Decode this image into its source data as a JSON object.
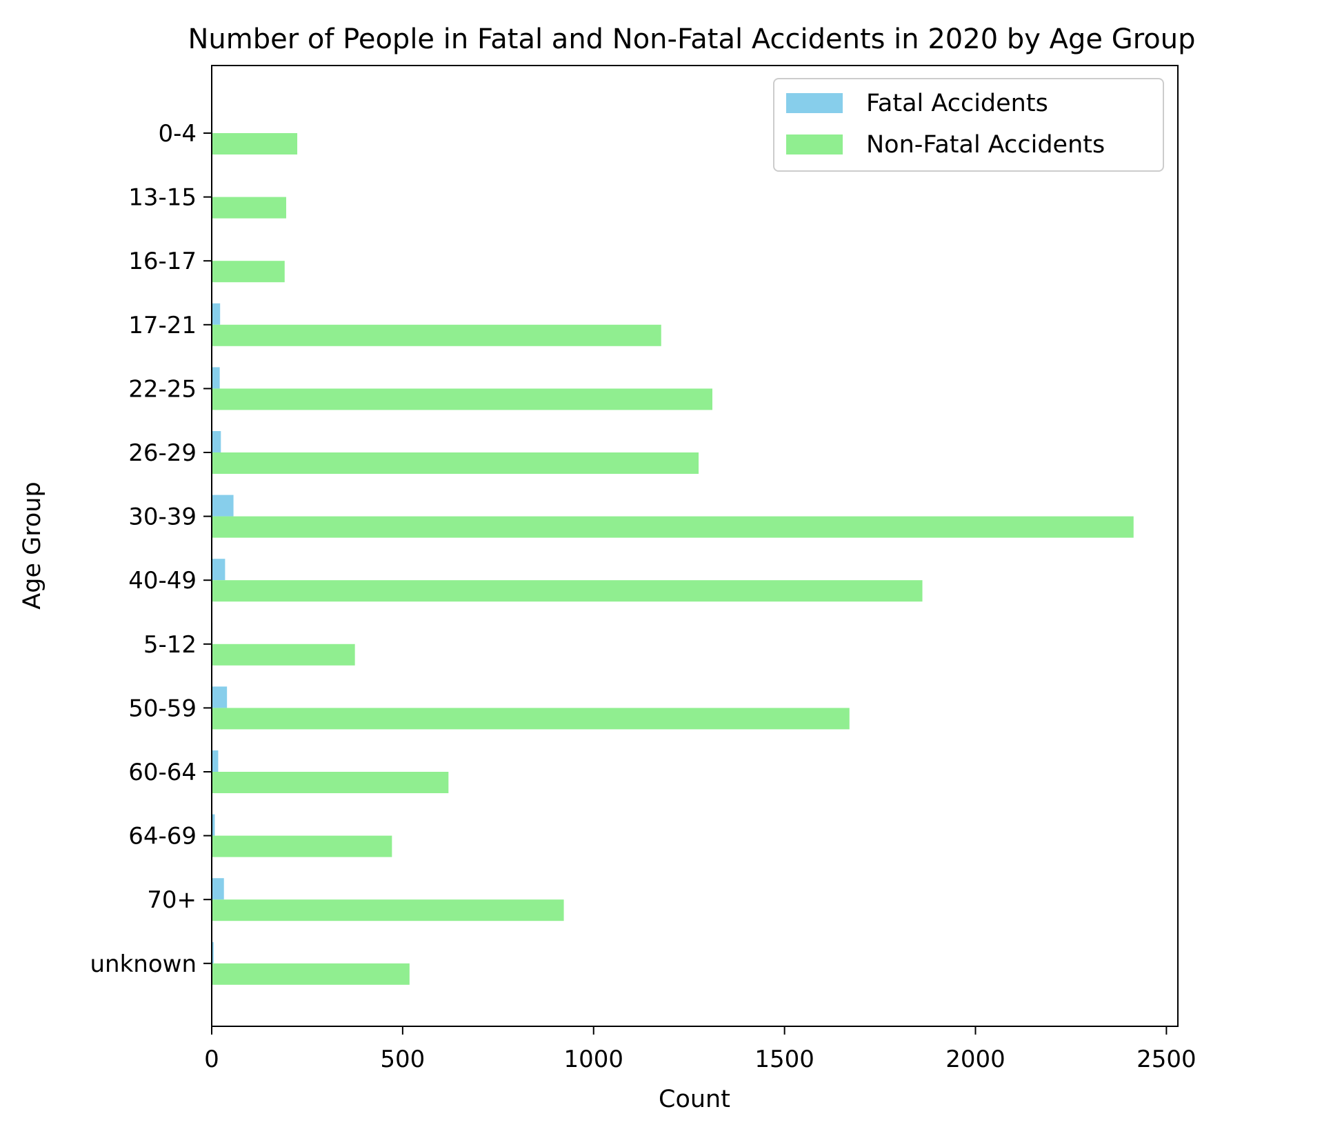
{
  "chart_data": {
    "type": "bar",
    "orientation": "horizontal",
    "title": "Number of People in Fatal and Non-Fatal Accidents in 2020 by Age Group",
    "xlabel": "Count",
    "ylabel": "Age Group",
    "xlim": [
      0,
      2530
    ],
    "xticks": [
      0,
      500,
      1000,
      1500,
      2000,
      2500
    ],
    "grid": false,
    "legend_position": "top-right",
    "categories": [
      "0-4",
      "13-15",
      "16-17",
      "17-21",
      "22-25",
      "26-29",
      "30-39",
      "40-49",
      "5-12",
      "50-59",
      "60-64",
      "64-69",
      "70+",
      "unknown"
    ],
    "series": [
      {
        "name": "Fatal Accidents",
        "color": "#87ceeb",
        "values": [
          2,
          1,
          1,
          22,
          21,
          24,
          57,
          35,
          2,
          40,
          17,
          8,
          32,
          5
        ]
      },
      {
        "name": "Non-Fatal Accidents",
        "color": "#90ee90",
        "values": [
          224,
          195,
          191,
          1177,
          1311,
          1275,
          2414,
          1861,
          375,
          1670,
          620,
          472,
          922,
          518
        ]
      }
    ]
  }
}
